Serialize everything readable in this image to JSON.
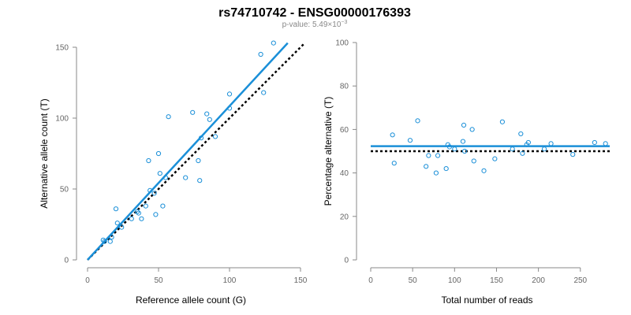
{
  "header": {
    "title": "rs74710742 - ENSG00000176393",
    "pvalue_prefix": "p-value: 5.49×10",
    "pvalue_exp": "−3"
  },
  "colors": {
    "points": "#1a8fd8",
    "fit_line": "#1a8fd8",
    "null_line": "#000000"
  },
  "chart_data": [
    {
      "type": "scatter",
      "xlabel": "Reference allele count (G)",
      "ylabel": "Alternative allele count (T)",
      "xlim": [
        0,
        150
      ],
      "ylim": [
        0,
        150
      ],
      "xticks": [
        0,
        50,
        100,
        150
      ],
      "yticks": [
        0,
        50,
        100,
        150
      ],
      "grid": false,
      "points": [
        [
          11,
          14
        ],
        [
          12,
          13
        ],
        [
          16,
          13
        ],
        [
          17,
          16
        ],
        [
          20,
          36
        ],
        [
          21,
          26
        ],
        [
          24,
          23
        ],
        [
          31,
          29
        ],
        [
          35,
          34
        ],
        [
          36,
          33
        ],
        [
          38,
          29
        ],
        [
          41,
          38
        ],
        [
          43,
          70
        ],
        [
          44,
          49
        ],
        [
          47,
          47
        ],
        [
          48,
          32
        ],
        [
          50,
          75
        ],
        [
          51,
          61
        ],
        [
          53,
          38
        ],
        [
          55,
          58
        ],
        [
          57,
          101
        ],
        [
          69,
          58
        ],
        [
          74,
          104
        ],
        [
          78,
          70
        ],
        [
          79,
          56
        ],
        [
          80,
          86
        ],
        [
          84,
          103
        ],
        [
          86,
          99
        ],
        [
          90,
          87
        ],
        [
          100,
          107
        ],
        [
          100,
          117
        ],
        [
          122,
          145
        ],
        [
          124,
          118
        ],
        [
          131,
          153
        ]
      ],
      "fit_line": [
        [
          0,
          0
        ],
        [
          141,
          153
        ]
      ],
      "null_line": [
        [
          0,
          0
        ],
        [
          153,
          153
        ]
      ]
    },
    {
      "type": "scatter",
      "xlabel": "Total number of reads",
      "ylabel": "Percentage alternative (T)",
      "xlim": [
        0,
        285
      ],
      "ylim": [
        0,
        100
      ],
      "xticks": [
        0,
        50,
        100,
        150,
        200,
        250
      ],
      "yticks": [
        0,
        20,
        40,
        60,
        80,
        100
      ],
      "grid": false,
      "points": [
        [
          26,
          57.5
        ],
        [
          28,
          44.5
        ],
        [
          47,
          55
        ],
        [
          56,
          64
        ],
        [
          66,
          43
        ],
        [
          69,
          48
        ],
        [
          78,
          40
        ],
        [
          80,
          48
        ],
        [
          90,
          42
        ],
        [
          92,
          53
        ],
        [
          94,
          52
        ],
        [
          100,
          51
        ],
        [
          110,
          54.5
        ],
        [
          111,
          62
        ],
        [
          112,
          50
        ],
        [
          121,
          60
        ],
        [
          123,
          45.5
        ],
        [
          135,
          41
        ],
        [
          148,
          46.5
        ],
        [
          157,
          63.5
        ],
        [
          169,
          51
        ],
        [
          179,
          58
        ],
        [
          181,
          49
        ],
        [
          186,
          53
        ],
        [
          188,
          54
        ],
        [
          207,
          51
        ],
        [
          215,
          53.5
        ],
        [
          241,
          48.5
        ],
        [
          267,
          54
        ],
        [
          280,
          53.5
        ]
      ],
      "fit_line": [
        [
          0,
          52.3
        ],
        [
          285,
          52.3
        ]
      ],
      "null_line": [
        [
          0,
          50
        ],
        [
          285,
          50
        ]
      ]
    }
  ]
}
